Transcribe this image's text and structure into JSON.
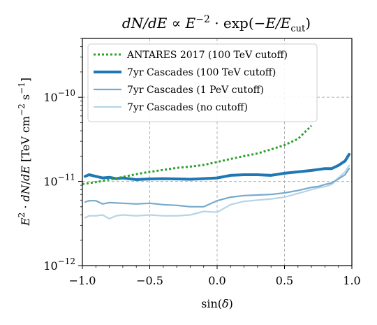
{
  "chart_data": {
    "type": "line",
    "title": "dN/dE ∝ E^{-2}·exp(−E/E_cut)",
    "xlabel": "sin(δ)",
    "ylabel": "E^2·dN/dE [TeV cm^-2 s^-1]",
    "xlim": [
      -1.0,
      1.0
    ],
    "ylim": [
      1e-12,
      5e-10
    ],
    "yscale": "log",
    "xticks": [
      {
        "value": -1.0,
        "label": "−1.0"
      },
      {
        "value": -0.5,
        "label": "−0.5"
      },
      {
        "value": 0.0,
        "label": "0.0"
      },
      {
        "value": 0.5,
        "label": "0.5"
      },
      {
        "value": 1.0,
        "label": "1.0"
      }
    ],
    "yticks": [
      {
        "value": 1e-12,
        "label": "10",
        "exp": "−12"
      },
      {
        "value": 1e-11,
        "label": "10",
        "exp": "−11"
      },
      {
        "value": 1e-10,
        "label": "10",
        "exp": "−10"
      }
    ],
    "vgrid": [
      -0.5,
      0.0,
      0.5
    ],
    "hgrid": [
      1e-11,
      1e-10
    ],
    "legend_position": "upper-left",
    "series": [
      {
        "name": "ANTARES 2017 (100 TeV cutoff)",
        "color": "#2ca02c",
        "style": "dotted",
        "width": 3,
        "x": [
          -1.0,
          -0.9,
          -0.8,
          -0.7,
          -0.6,
          -0.5,
          -0.4,
          -0.3,
          -0.2,
          -0.1,
          0.0,
          0.1,
          0.2,
          0.3,
          0.4,
          0.5,
          0.6,
          0.7
        ],
        "y": [
          9.3e-12,
          9.8e-12,
          1.05e-11,
          1.13e-11,
          1.22e-11,
          1.3e-11,
          1.37e-11,
          1.45e-11,
          1.5e-11,
          1.57e-11,
          1.7e-11,
          1.85e-11,
          2e-11,
          2.15e-11,
          2.4e-11,
          2.7e-11,
          3.2e-11,
          4.6e-11
        ]
      },
      {
        "name": "7yr Cascades (100 TeV cutoff)",
        "color": "#1f77b4",
        "style": "solid",
        "width": 4,
        "x": [
          -0.98,
          -0.95,
          -0.9,
          -0.85,
          -0.8,
          -0.75,
          -0.7,
          -0.6,
          -0.5,
          -0.4,
          -0.3,
          -0.2,
          -0.1,
          0.0,
          0.1,
          0.2,
          0.3,
          0.4,
          0.5,
          0.6,
          0.7,
          0.8,
          0.85,
          0.9,
          0.95,
          0.98
        ],
        "y": [
          1.15e-11,
          1.2e-11,
          1.15e-11,
          1.1e-11,
          1.12e-11,
          1.08e-11,
          1.1e-11,
          1.05e-11,
          1.07e-11,
          1.08e-11,
          1.07e-11,
          1.06e-11,
          1.08e-11,
          1.1e-11,
          1.18e-11,
          1.2e-11,
          1.2e-11,
          1.18e-11,
          1.25e-11,
          1.3e-11,
          1.35e-11,
          1.42e-11,
          1.42e-11,
          1.55e-11,
          1.75e-11,
          2.1e-11
        ]
      },
      {
        "name": "7yr Cascades (1 PeV cutoff)",
        "color": "#76a9cd",
        "style": "solid",
        "width": 2.2,
        "x": [
          -0.98,
          -0.95,
          -0.9,
          -0.85,
          -0.8,
          -0.7,
          -0.6,
          -0.5,
          -0.4,
          -0.3,
          -0.2,
          -0.1,
          0.0,
          0.1,
          0.2,
          0.3,
          0.4,
          0.5,
          0.6,
          0.7,
          0.75,
          0.8,
          0.85,
          0.9,
          0.95,
          0.98
        ],
        "y": [
          5.7e-12,
          5.9e-12,
          5.9e-12,
          5.4e-12,
          5.6e-12,
          5.5e-12,
          5.4e-12,
          5.5e-12,
          5.3e-12,
          5.2e-12,
          5e-12,
          5e-12,
          5.9e-12,
          6.5e-12,
          6.8e-12,
          6.9e-12,
          7e-12,
          7.3e-12,
          7.8e-12,
          8.5e-12,
          8.7e-12,
          9.2e-12,
          9.6e-12,
          1.07e-11,
          1.2e-11,
          1.42e-11
        ]
      },
      {
        "name": "7yr Cascades (no cutoff)",
        "color": "#b6d4e8",
        "style": "solid",
        "width": 2.2,
        "x": [
          -0.98,
          -0.95,
          -0.9,
          -0.85,
          -0.8,
          -0.75,
          -0.7,
          -0.6,
          -0.5,
          -0.4,
          -0.3,
          -0.2,
          -0.1,
          0.0,
          0.1,
          0.2,
          0.3,
          0.4,
          0.5,
          0.6,
          0.7,
          0.75,
          0.8,
          0.85,
          0.9,
          0.95,
          0.98
        ],
        "y": [
          3.7e-12,
          3.9e-12,
          3.9e-12,
          4e-12,
          3.6e-12,
          3.9e-12,
          4e-12,
          3.9e-12,
          4e-12,
          3.9e-12,
          3.9e-12,
          4e-12,
          4.4e-12,
          4.3e-12,
          5.3e-12,
          5.8e-12,
          6e-12,
          6.2e-12,
          6.5e-12,
          7.2e-12,
          8e-12,
          8.4e-12,
          8.7e-12,
          9.2e-12,
          1.1e-11,
          1.3e-11,
          1.55e-11
        ]
      }
    ]
  }
}
